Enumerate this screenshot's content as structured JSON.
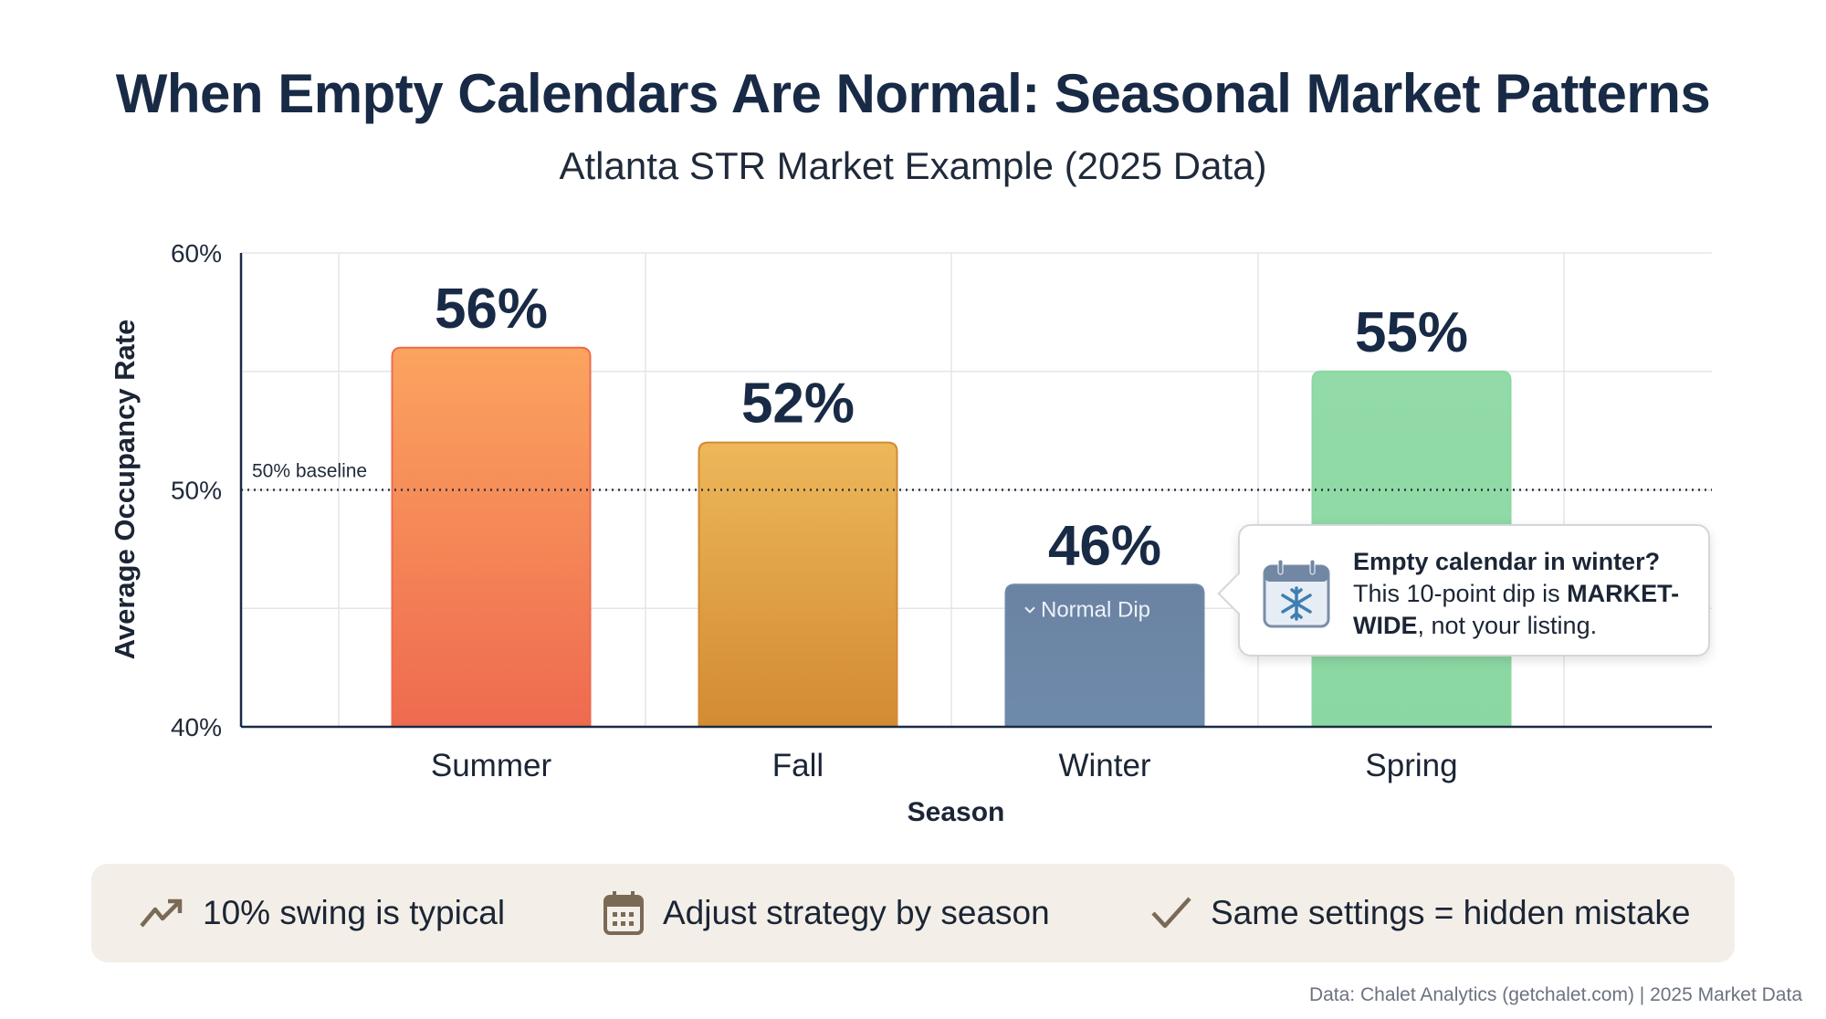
{
  "title": "When Empty Calendars Are Normal: Seasonal Market Patterns",
  "subtitle": "Atlanta STR Market Example (2025 Data)",
  "chart_data": {
    "type": "bar",
    "categories": [
      "Summer",
      "Fall",
      "Winter",
      "Spring"
    ],
    "values": [
      56,
      52,
      46,
      55
    ],
    "data_labels": [
      "56%",
      "52%",
      "46%",
      "55%"
    ],
    "colors": [
      [
        "#fba45f",
        "#ee6a4f"
      ],
      [
        "#edb75a",
        "#d38b32"
      ],
      [
        "#6b83a3",
        "#6e8aaa"
      ],
      [
        "#92dba8",
        "#8bd7a2"
      ]
    ],
    "xlabel": "Season",
    "ylabel": "Average Occupancy Rate",
    "ylim": [
      40,
      60
    ],
    "yticks": [
      40,
      50,
      60
    ],
    "ytick_labels": [
      "40%",
      "50%",
      "60%"
    ],
    "grid": true,
    "reference_line": {
      "value": 50,
      "label": "50% baseline",
      "style": "dotted"
    },
    "bar_annotation": {
      "category": "Winter",
      "label": "Normal Dip",
      "icon": "chevron-down-icon"
    }
  },
  "tooltip": {
    "icon": "calendar-snowflake-icon",
    "heading": "Empty calendar in winter?",
    "text_before": "This 10-point dip is ",
    "text_bold": "MARKET-WIDE",
    "text_after": ", not your listing."
  },
  "takeaways": [
    {
      "icon": "trending-up-icon",
      "label": "10% swing is typical"
    },
    {
      "icon": "calendar-icon",
      "label": "Adjust strategy by season"
    },
    {
      "icon": "checkmark-icon",
      "label": "Same settings = hidden mistake"
    }
  ],
  "footer": "Data: Chalet Analytics (getchalet.com) | 2025 Market Data"
}
